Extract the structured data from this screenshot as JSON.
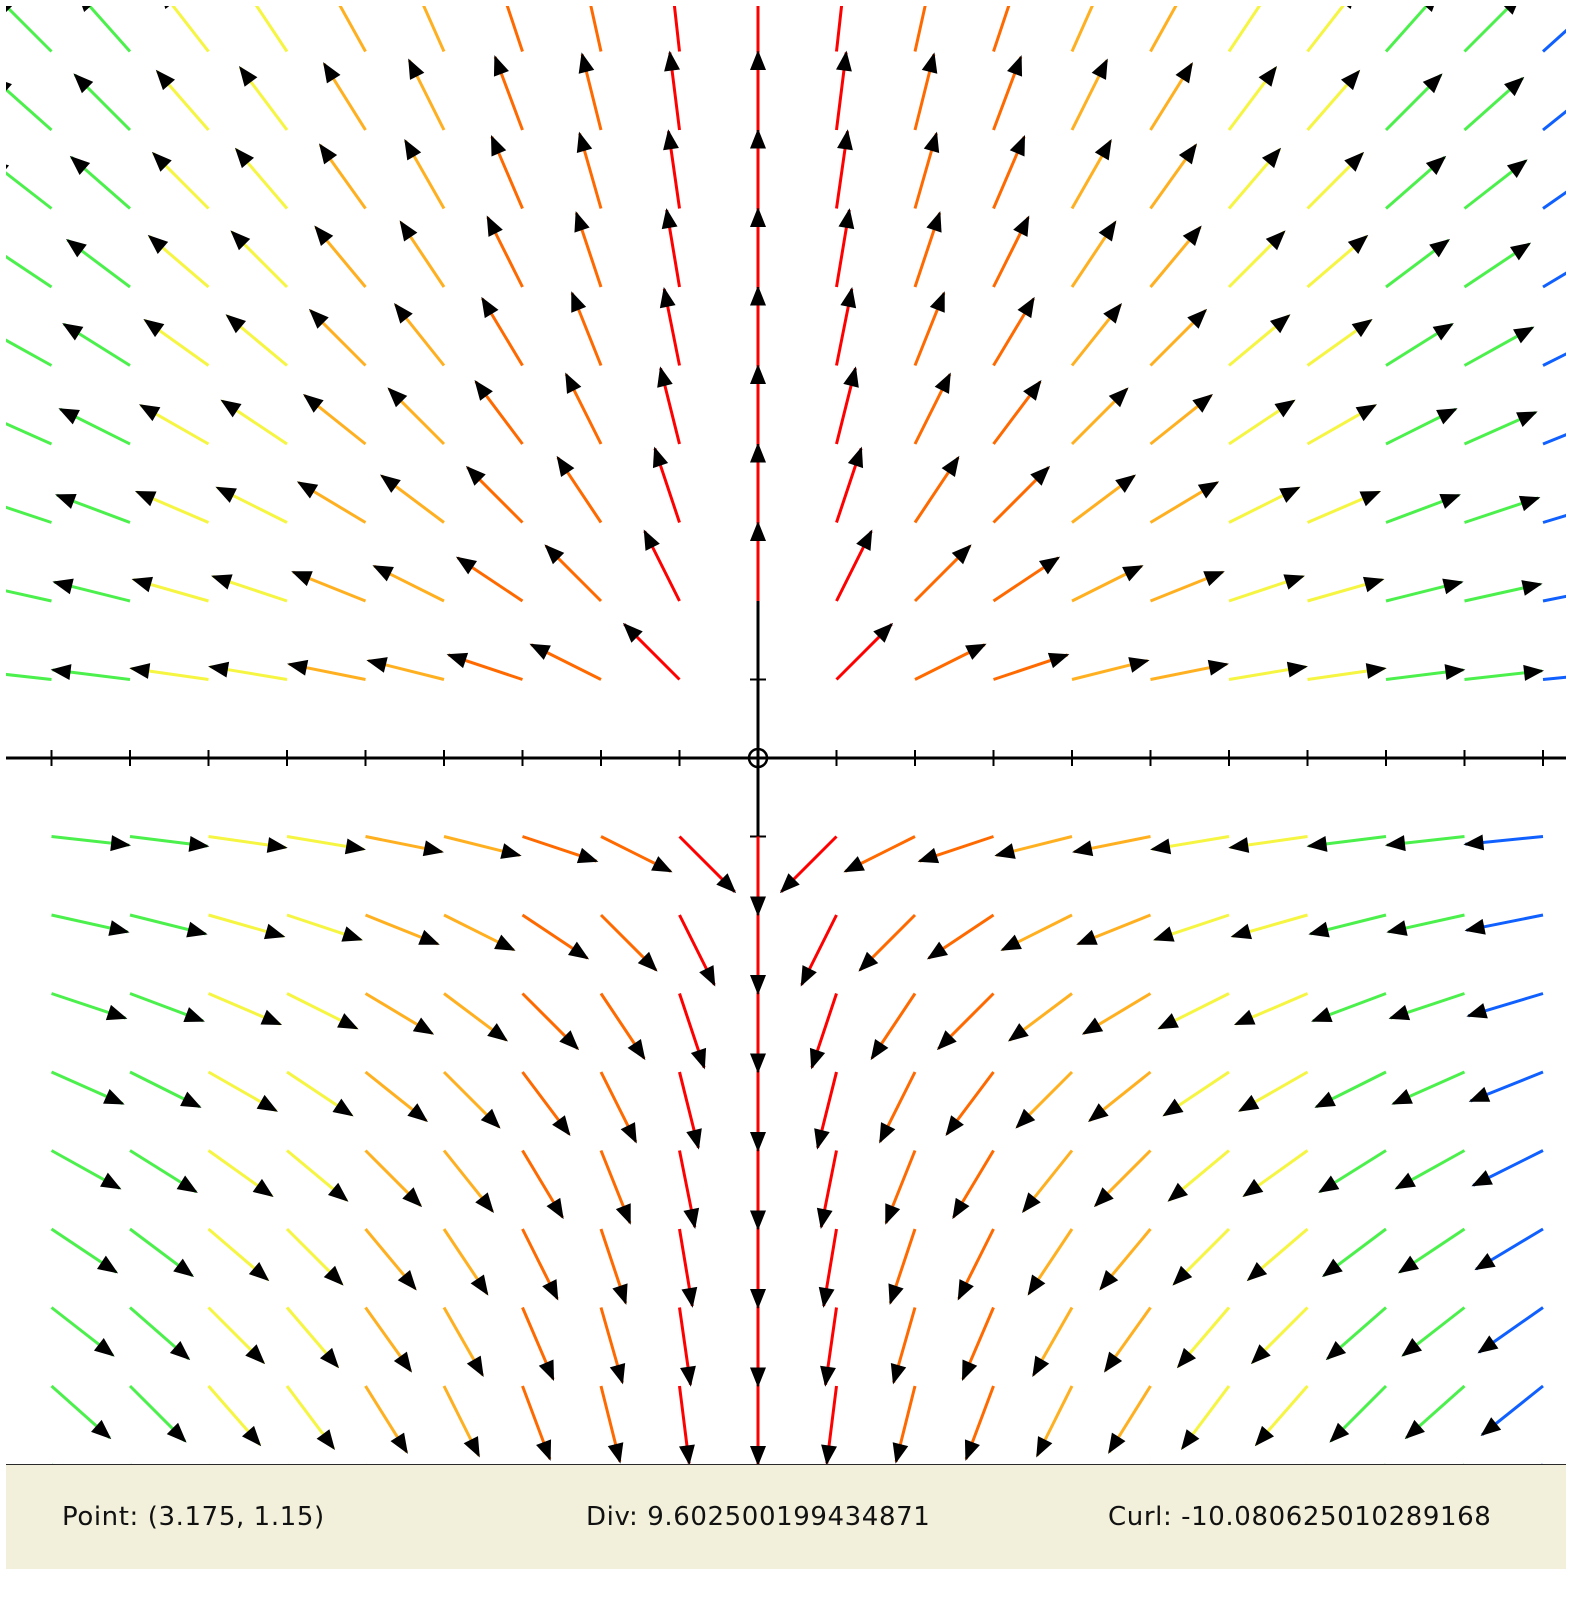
{
  "status": {
    "point_label": "Point: (3.175, 1.15)",
    "div_label": "Div: 9.602500199434871",
    "curl_label": "Curl: -10.080625010289168"
  },
  "colors": {
    "background": "#ffffff",
    "axes": "#000000",
    "arrowhead": "#000000",
    "statusbar_bg": "#f2f0da",
    "magnitude_scale": [
      "#ff0000",
      "#ff6a00",
      "#ffb020",
      "#f5f542",
      "#4cf04c",
      "#20f0d0",
      "#1060ff"
    ]
  },
  "plot": {
    "description_type": "vector-field",
    "x_range": [
      -9.5,
      10
    ],
    "y_range": [
      -9,
      9.5
    ],
    "axis_tick_interval": 1,
    "grid": false
  }
}
